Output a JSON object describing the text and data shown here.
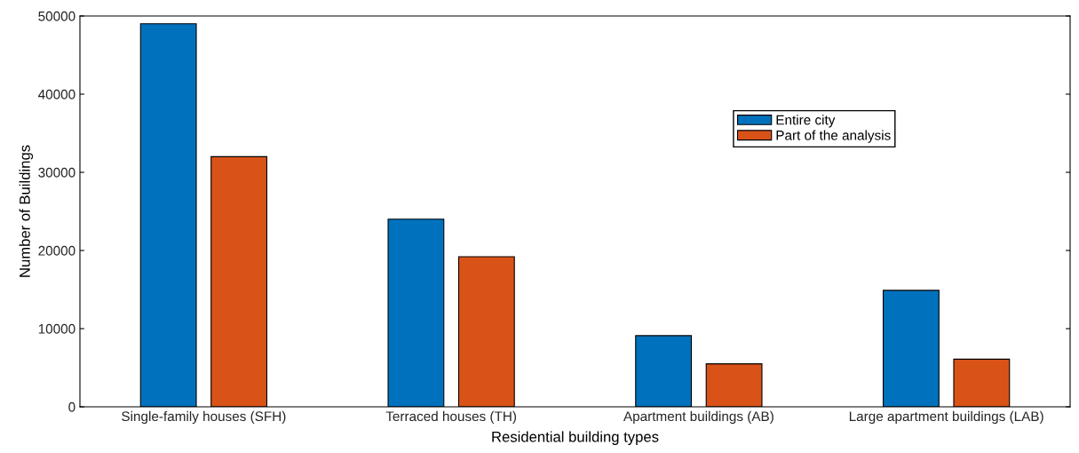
{
  "chart_data": {
    "type": "bar",
    "xlabel": "Residential building types",
    "ylabel": "Number of Buildings",
    "categories": [
      "Single-family houses (SFH)",
      "Terraced houses (TH)",
      "Apartment buildings (AB)",
      "Large apartment buildings (LAB)"
    ],
    "series": [
      {
        "name": "Entire city",
        "color": "#0072bd",
        "values": [
          49000,
          24000,
          9100,
          14900
        ]
      },
      {
        "name": "Part of the analysis",
        "color": "#d95319",
        "values": [
          32000,
          19200,
          5500,
          6100
        ]
      }
    ],
    "ylim": [
      0,
      50000
    ],
    "yticks": [
      0,
      10000,
      20000,
      30000,
      40000,
      50000
    ],
    "grid": false,
    "legend": "top right"
  }
}
